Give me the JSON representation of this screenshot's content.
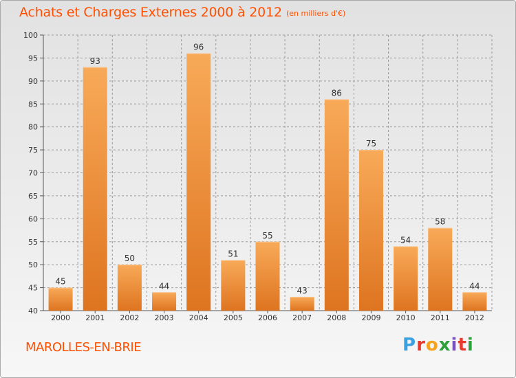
{
  "header": {
    "title": "Achats et Charges Externes 2000 à 2012",
    "unit": "(en milliers d'€)"
  },
  "footer": {
    "city": "MAROLLES-EN-BRIE",
    "logo_text": "Proxiti",
    "logo_colors": [
      "#3aa0e0",
      "#e8392e",
      "#f6a21c",
      "#2e9f3a",
      "#7a4fbf",
      "#e8392e",
      "#2e9f3a"
    ]
  },
  "colors": {
    "title": "#ff4f00",
    "bar_light": "#f7a553",
    "bar_dark": "#e07a20",
    "grid": "#999999"
  },
  "chart_data": {
    "type": "bar",
    "title": "Achats et Charges Externes 2000 à 2012",
    "subtitle": "(en milliers d'€)",
    "categories": [
      "2000",
      "2001",
      "2002",
      "2003",
      "2004",
      "2005",
      "2006",
      "2007",
      "2008",
      "2009",
      "2010",
      "2011",
      "2012"
    ],
    "values": [
      45,
      93,
      50,
      44,
      96,
      51,
      55,
      43,
      86,
      75,
      54,
      58,
      44
    ],
    "ylim": [
      40,
      100
    ],
    "yticks": [
      40,
      45,
      50,
      55,
      60,
      65,
      70,
      75,
      80,
      85,
      90,
      95,
      100
    ],
    "grid": true,
    "legend": "none"
  }
}
